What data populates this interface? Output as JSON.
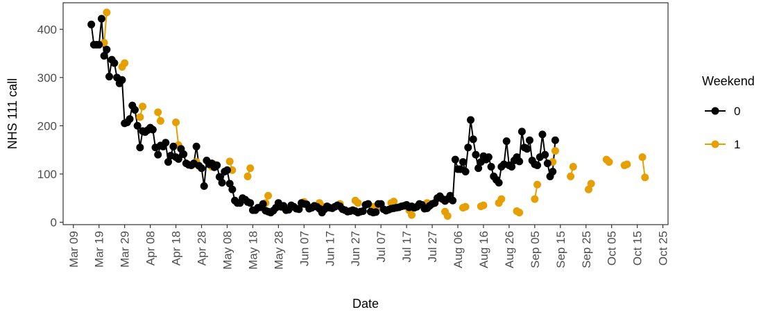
{
  "chart_data": {
    "type": "line",
    "xlabel": "Date",
    "ylabel": "NHS 111 call",
    "xlim": [
      "2020-03-05",
      "2020-10-27"
    ],
    "ylim": [
      -5,
      455
    ],
    "y_ticks": [
      0,
      100,
      200,
      300,
      400
    ],
    "x_ticks": [
      {
        "date": "2020-03-09",
        "label": "Mar 09"
      },
      {
        "date": "2020-03-19",
        "label": "Mar 19"
      },
      {
        "date": "2020-03-29",
        "label": "Mar 29"
      },
      {
        "date": "2020-04-08",
        "label": "Apr 08"
      },
      {
        "date": "2020-04-18",
        "label": "Apr 18"
      },
      {
        "date": "2020-04-28",
        "label": "Apr 28"
      },
      {
        "date": "2020-05-08",
        "label": "May 08"
      },
      {
        "date": "2020-05-18",
        "label": "May 18"
      },
      {
        "date": "2020-05-28",
        "label": "May 28"
      },
      {
        "date": "2020-06-07",
        "label": "Jun 07"
      },
      {
        "date": "2020-06-17",
        "label": "Jun 17"
      },
      {
        "date": "2020-06-27",
        "label": "Jun 27"
      },
      {
        "date": "2020-07-07",
        "label": "Jul 07"
      },
      {
        "date": "2020-07-17",
        "label": "Jul 17"
      },
      {
        "date": "2020-07-27",
        "label": "Jul 27"
      },
      {
        "date": "2020-08-06",
        "label": "Aug 06"
      },
      {
        "date": "2020-08-16",
        "label": "Aug 16"
      },
      {
        "date": "2020-08-26",
        "label": "Aug 26"
      },
      {
        "date": "2020-09-05",
        "label": "Sep 05"
      },
      {
        "date": "2020-09-15",
        "label": "Sep 15"
      },
      {
        "date": "2020-09-25",
        "label": "Sep 25"
      },
      {
        "date": "2020-10-05",
        "label": "Oct 05"
      },
      {
        "date": "2020-10-15",
        "label": "Oct 15"
      },
      {
        "date": "2020-10-25",
        "label": "Oct 25"
      }
    ],
    "grid": false,
    "legend": {
      "title": "Weekend",
      "position": "right"
    },
    "series": [
      {
        "name": "0",
        "color": "#000000",
        "x_start": "2020-03-16",
        "x_step_days": 1,
        "values": [
          410,
          368,
          368,
          368,
          422,
          345,
          358,
          302,
          337,
          330,
          300,
          288,
          295,
          205,
          207,
          214,
          242,
          233,
          200,
          155,
          189,
          187,
          191,
          196,
          192,
          155,
          140,
          159,
          157,
          165,
          125,
          138,
          157,
          135,
          131,
          152,
          141,
          122,
          119,
          118,
          122,
          157,
          117,
          112,
          75,
          128,
          120,
          122,
          114,
          118,
          94,
          82,
          105,
          108,
          80,
          68,
          45,
          40,
          40,
          50,
          47,
          42,
          40,
          25,
          25,
          30,
          31,
          38,
          24,
          22,
          20,
          24,
          30,
          40,
          32,
          34,
          25,
          26,
          35,
          32,
          28,
          27,
          40,
          38,
          37,
          28,
          30,
          34,
          32,
          28,
          20,
          27,
          33,
          30,
          29,
          32,
          35,
          33,
          27,
          25,
          22,
          23,
          25,
          23,
          20,
          22,
          23,
          36,
          38,
          22,
          20,
          21,
          38,
          38,
          27,
          24,
          26,
          28,
          29,
          30,
          31,
          33,
          34,
          36,
          31,
          33,
          30,
          32,
          38,
          36,
          28,
          29,
          34,
          38,
          40,
          50,
          54,
          48,
          44,
          48,
          55,
          45,
          130,
          110,
          110,
          125,
          105,
          155,
          212,
          172,
          140,
          112,
          125,
          137,
          130,
          135,
          115,
          95,
          88,
          82,
          115,
          120,
          168,
          118,
          115,
          128,
          135,
          126,
          188,
          155,
          152,
          170,
          128,
          120,
          118,
          135,
          182,
          140,
          122,
          95,
          105,
          170
        ]
      },
      {
        "name": "1",
        "color": "#E69F00",
        "points": [
          [
            "2020-03-21",
            372
          ],
          [
            "2020-03-22",
            435
          ],
          [
            "2020-03-28",
            322
          ],
          [
            "2020-03-29",
            330
          ],
          [
            "2020-04-04",
            218
          ],
          [
            "2020-04-05",
            240
          ],
          [
            "2020-04-11",
            228
          ],
          [
            "2020-04-12",
            210
          ],
          [
            "2020-04-18",
            207
          ],
          [
            "2020-04-19",
            160
          ],
          [
            "2020-04-25",
            120
          ],
          [
            "2020-04-26",
            125
          ],
          [
            "2020-05-02",
            115
          ],
          [
            "2020-05-03",
            120
          ],
          [
            "2020-05-09",
            126
          ],
          [
            "2020-05-10",
            108
          ],
          [
            "2020-05-16",
            95
          ],
          [
            "2020-05-17",
            112
          ],
          [
            "2020-05-23",
            40
          ],
          [
            "2020-05-24",
            55
          ],
          [
            "2020-05-30",
            30
          ],
          [
            "2020-05-31",
            25
          ],
          [
            "2020-06-06",
            38
          ],
          [
            "2020-06-07",
            42
          ],
          [
            "2020-06-13",
            40
          ],
          [
            "2020-06-14",
            33
          ],
          [
            "2020-06-20",
            35
          ],
          [
            "2020-06-21",
            38
          ],
          [
            "2020-06-27",
            45
          ],
          [
            "2020-06-28",
            40
          ],
          [
            "2020-07-04",
            32
          ],
          [
            "2020-07-05",
            26
          ],
          [
            "2020-07-11",
            40
          ],
          [
            "2020-07-12",
            43
          ],
          [
            "2020-07-18",
            25
          ],
          [
            "2020-07-19",
            15
          ],
          [
            "2020-07-25",
            40
          ],
          [
            "2020-07-26",
            38
          ],
          [
            "2020-08-01",
            22
          ],
          [
            "2020-08-02",
            13
          ],
          [
            "2020-08-08",
            30
          ],
          [
            "2020-08-09",
            32
          ],
          [
            "2020-08-15",
            33
          ],
          [
            "2020-08-16",
            35
          ],
          [
            "2020-08-22",
            40
          ],
          [
            "2020-08-23",
            48
          ],
          [
            "2020-08-29",
            23
          ],
          [
            "2020-08-30",
            20
          ],
          [
            "2020-09-05",
            48
          ],
          [
            "2020-09-06",
            78
          ],
          [
            "2020-09-12",
            125
          ],
          [
            "2020-09-13",
            148
          ],
          [
            "2020-09-19",
            95
          ],
          [
            "2020-09-20",
            115
          ],
          [
            "2020-09-26",
            68
          ],
          [
            "2020-09-27",
            80
          ],
          [
            "2020-10-03",
            130
          ],
          [
            "2020-10-04",
            125
          ],
          [
            "2020-10-10",
            118
          ],
          [
            "2020-10-11",
            120
          ],
          [
            "2020-10-17",
            135
          ],
          [
            "2020-10-18",
            93
          ]
        ]
      }
    ]
  }
}
